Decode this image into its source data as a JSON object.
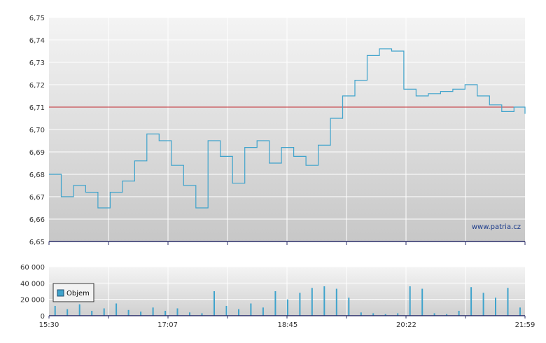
{
  "watermark": "www.patria.cz",
  "colors": {
    "price_line": "#3fa3cc",
    "reference_line": "#c0282d",
    "volume_bars": "#3fa3cc",
    "axis": "#2c2f6a",
    "grid": "#ffffff"
  },
  "chart_data": [
    {
      "type": "line",
      "ylim": [
        6.65,
        6.75
      ],
      "y_ticks": [
        "6,65",
        "6,66",
        "6,67",
        "6,68",
        "6,69",
        "6,70",
        "6,71",
        "6,72",
        "6,73",
        "6,74",
        "6,75"
      ],
      "reference_line": 6.71,
      "grid": true,
      "x_range_minutes": [
        930,
        1319
      ],
      "series": [
        {
          "x": [
            "15:30",
            "15:40",
            "15:50",
            "16:00",
            "16:10",
            "16:20",
            "16:30",
            "16:40",
            "16:50",
            "17:00",
            "17:10",
            "17:20",
            "17:30",
            "17:40",
            "17:50",
            "18:00",
            "18:10",
            "18:20",
            "18:30",
            "18:40",
            "18:50",
            "19:00",
            "19:10",
            "19:20",
            "19:30",
            "19:40",
            "19:50",
            "20:00",
            "20:10",
            "20:20",
            "20:30",
            "20:40",
            "20:50",
            "21:00",
            "21:10",
            "21:20",
            "21:30",
            "21:40",
            "21:50",
            "21:59"
          ],
          "values": [
            6.68,
            6.67,
            6.675,
            6.672,
            6.665,
            6.672,
            6.677,
            6.686,
            6.698,
            6.695,
            6.684,
            6.675,
            6.665,
            6.695,
            6.688,
            6.676,
            6.692,
            6.695,
            6.685,
            6.692,
            6.688,
            6.684,
            6.693,
            6.705,
            6.715,
            6.722,
            6.733,
            6.736,
            6.735,
            6.718,
            6.715,
            6.716,
            6.717,
            6.718,
            6.72,
            6.715,
            6.711,
            6.708,
            6.71,
            6.707
          ]
        }
      ]
    },
    {
      "type": "bar",
      "ylim": [
        0,
        60000
      ],
      "y_ticks": [
        "0",
        "20 000",
        "40 000",
        "60 000"
      ],
      "x_ticks": [
        "15:30",
        "17:07",
        "18:45",
        "20:22",
        "21:59"
      ],
      "legend": "top-left",
      "series": [
        {
          "name": "Objem",
          "x": [
            "15:35",
            "15:45",
            "15:55",
            "16:05",
            "16:15",
            "16:25",
            "16:35",
            "16:45",
            "16:55",
            "17:05",
            "17:15",
            "17:25",
            "17:35",
            "17:45",
            "17:55",
            "18:05",
            "18:15",
            "18:25",
            "18:35",
            "18:45",
            "18:55",
            "19:05",
            "19:15",
            "19:25",
            "19:35",
            "19:45",
            "19:55",
            "20:05",
            "20:15",
            "20:25",
            "20:35",
            "20:45",
            "20:55",
            "21:05",
            "21:15",
            "21:25",
            "21:35",
            "21:45",
            "21:55"
          ],
          "values": [
            12000,
            8000,
            14000,
            6000,
            9000,
            15000,
            7000,
            5000,
            10000,
            6000,
            9000,
            4000,
            3000,
            30000,
            12000,
            8000,
            15000,
            10000,
            30000,
            20000,
            28000,
            34000,
            36000,
            33000,
            22000,
            4000,
            3000,
            2000,
            3000,
            36000,
            33000,
            3000,
            2000,
            6000,
            35000,
            28000,
            22000,
            34000,
            10000
          ]
        }
      ]
    }
  ]
}
